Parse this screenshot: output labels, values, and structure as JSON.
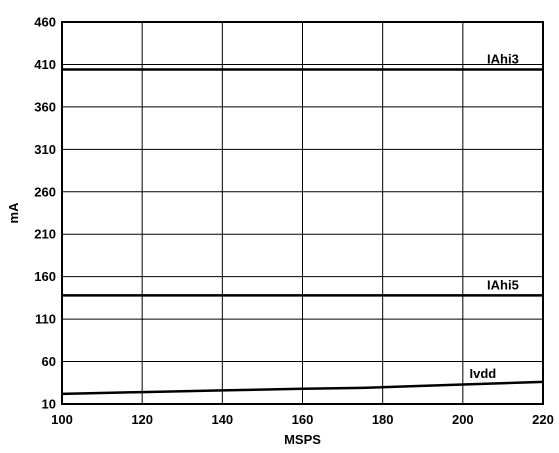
{
  "chart_data": {
    "type": "line",
    "title": "",
    "xlabel": "MSPS",
    "ylabel": "mA",
    "xlim": [
      100,
      220
    ],
    "ylim": [
      10,
      460
    ],
    "x_ticks": [
      100,
      120,
      140,
      160,
      180,
      200,
      220
    ],
    "y_ticks": [
      10,
      60,
      110,
      160,
      210,
      260,
      310,
      360,
      410,
      460
    ],
    "grid": true,
    "series": [
      {
        "name": "IAhi3",
        "x": [
          100,
          220
        ],
        "y": [
          404,
          404
        ]
      },
      {
        "name": "IAhi5",
        "x": [
          100,
          220
        ],
        "y": [
          138,
          138
        ]
      },
      {
        "name": "Ivdd",
        "x": [
          100,
          120,
          140,
          160,
          175,
          200,
          220
        ],
        "y": [
          22,
          24,
          26,
          28,
          29,
          33,
          36
        ]
      }
    ]
  }
}
